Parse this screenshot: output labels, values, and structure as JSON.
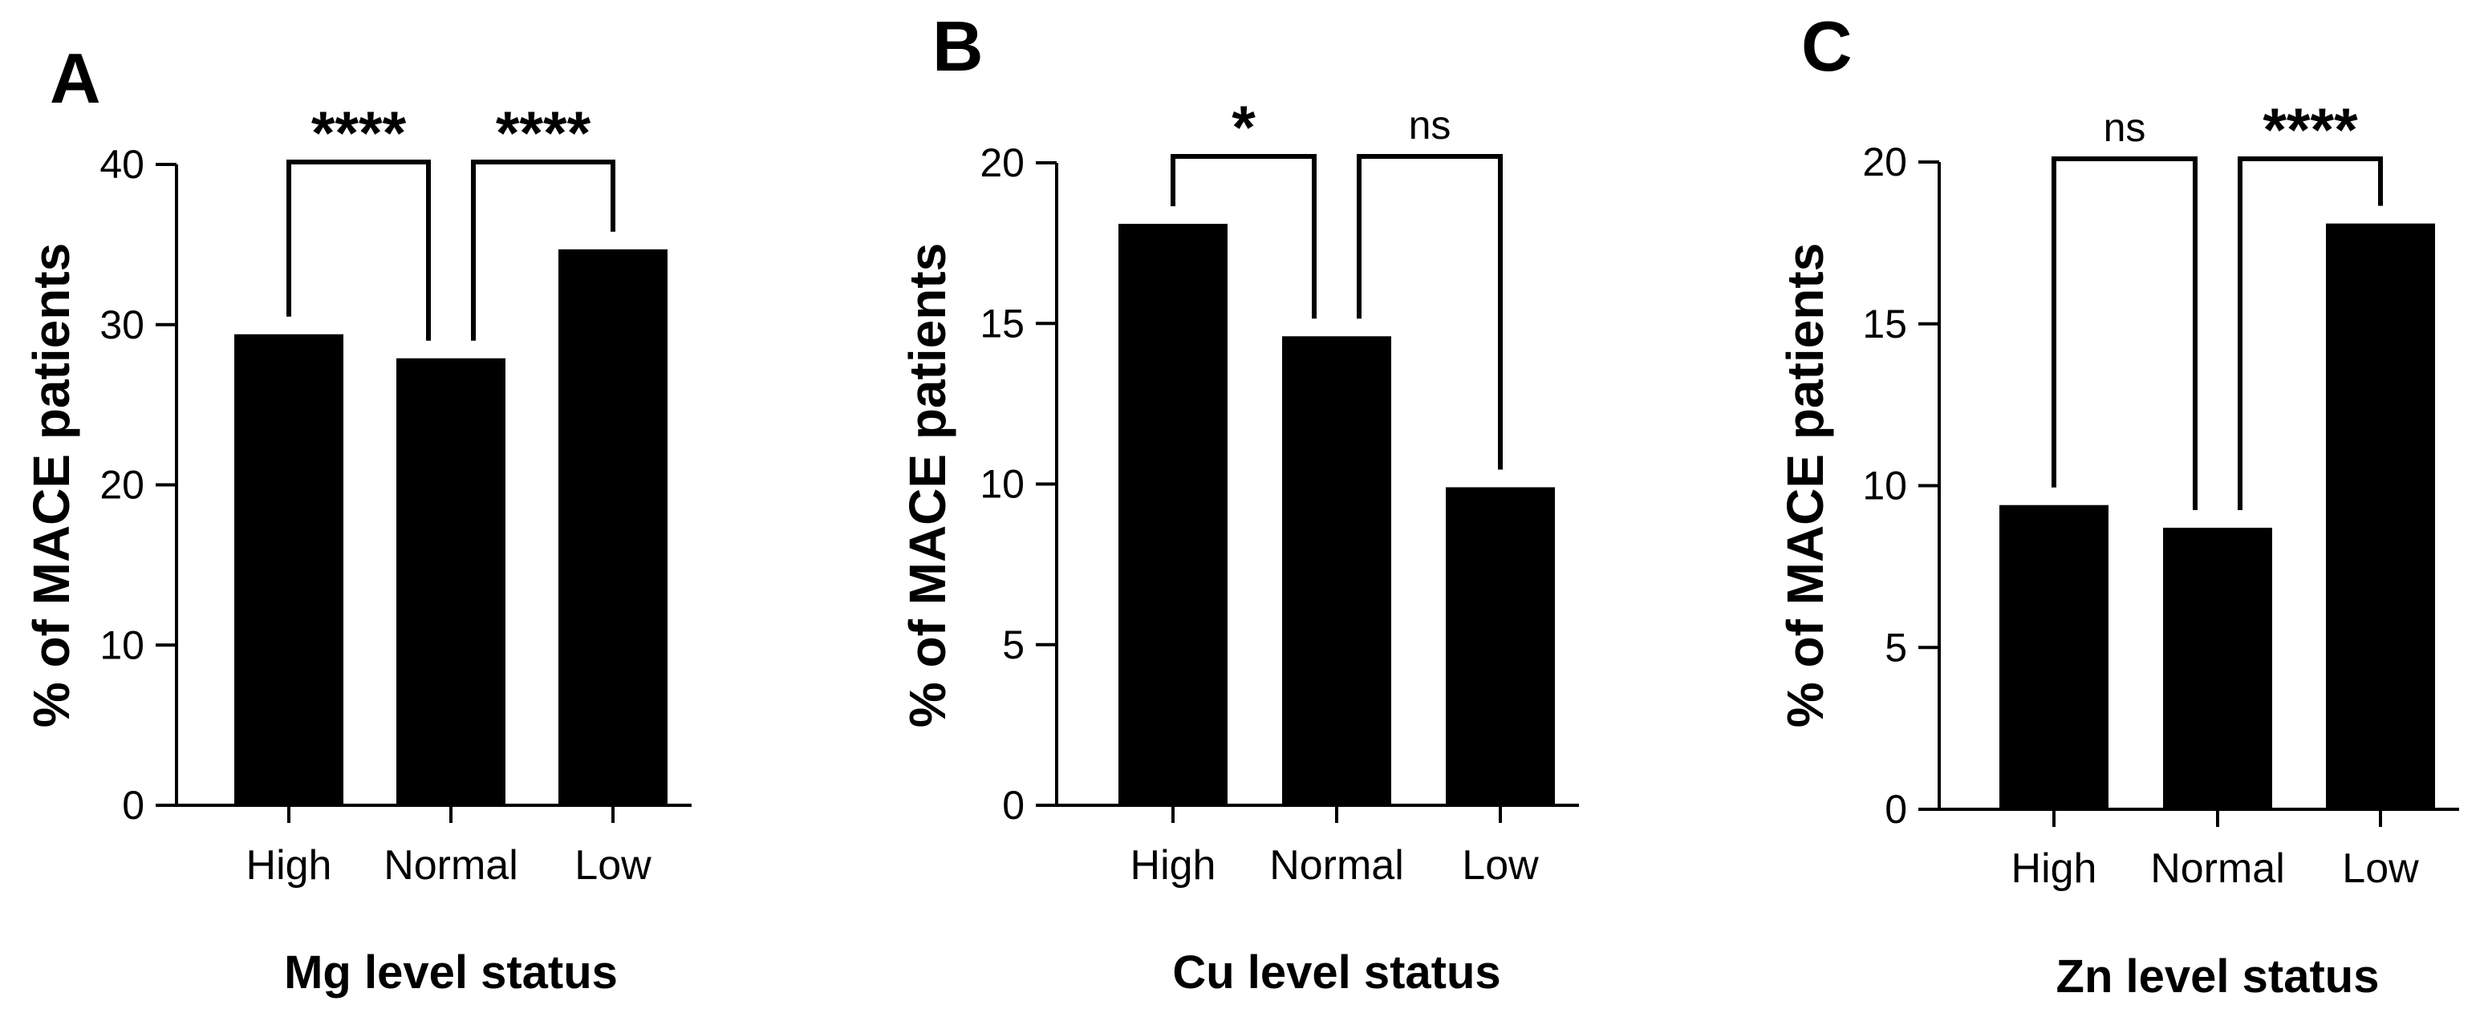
{
  "chart_data": [
    {
      "type": "bar",
      "panel": "A",
      "categories": [
        "High",
        "Normal",
        "Low"
      ],
      "values": [
        29.4,
        27.9,
        34.7
      ],
      "ylabel": "% of MACE patients",
      "xlabel": "Mg level status",
      "ylim": [
        0,
        40
      ],
      "yticks": [
        "0",
        "10",
        "20",
        "30",
        "40"
      ],
      "bar_color": "#000000",
      "significance": [
        {
          "from": 0,
          "to": 1,
          "label": "****"
        },
        {
          "from": 1,
          "to": 2,
          "label": "****"
        }
      ]
    },
    {
      "type": "bar",
      "panel": "B",
      "categories": [
        "High",
        "Normal",
        "Low"
      ],
      "values": [
        18.1,
        14.6,
        9.9
      ],
      "ylabel": "% of MACE patients",
      "xlabel": "Cu level status",
      "ylim": [
        0,
        20
      ],
      "yticks": [
        "0",
        "5",
        "10",
        "15",
        "20"
      ],
      "bar_color": "#000000",
      "significance": [
        {
          "from": 0,
          "to": 1,
          "label": "*"
        },
        {
          "from": 1,
          "to": 2,
          "label": "ns"
        }
      ]
    },
    {
      "type": "bar",
      "panel": "C",
      "categories": [
        "High",
        "Normal",
        "Low"
      ],
      "values": [
        9.4,
        8.7,
        18.1
      ],
      "ylabel": "% of MACE patients",
      "xlabel": "Zn level status",
      "ylim": [
        0,
        20
      ],
      "yticks": [
        "0",
        "5",
        "10",
        "15",
        "20"
      ],
      "bar_color": "#000000",
      "significance": [
        {
          "from": 0,
          "to": 1,
          "label": "ns"
        },
        {
          "from": 1,
          "to": 2,
          "label": "****"
        }
      ]
    }
  ]
}
